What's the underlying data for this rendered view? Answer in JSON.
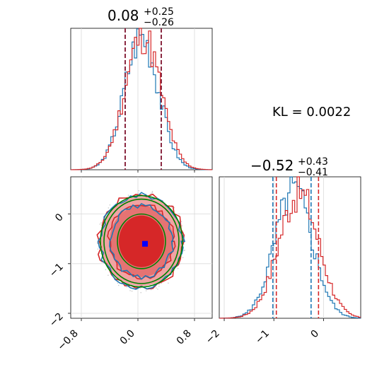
{
  "chart_data": {
    "type": "corner",
    "annotation": "KL = 0.0022",
    "colors": {
      "blue": "#1f77b4",
      "red": "#d62728",
      "green": "#008000",
      "dark_red": "#8b2942",
      "grid": "#d9d9d9",
      "scatter": "#cccccc"
    },
    "panels": [
      {
        "id": "hist-x",
        "type": "step-histogram",
        "title_main": "0.08",
        "title_sup": "+0.25",
        "title_sub": "−0.26",
        "xlim": [
          -0.95,
          1.05
        ],
        "ylim": [
          0,
          1.05
        ],
        "xticks": [
          -0.8,
          0.0,
          0.8
        ],
        "quantile_lines": [
          -0.18,
          0.33
        ],
        "series": [
          {
            "name": "blue",
            "center": 0.05,
            "sigma": 0.24,
            "jitter_seed": 3
          },
          {
            "name": "red",
            "center": 0.07,
            "sigma": 0.25,
            "jitter_seed": 11
          }
        ]
      },
      {
        "id": "hist-y",
        "type": "step-histogram",
        "title_main": "−0.52",
        "title_sup": "+0.43",
        "title_sub": "−0.41",
        "xlim": [
          -2.1,
          0.75
        ],
        "ylim": [
          0,
          1.1
        ],
        "xticks": [
          -2,
          -1,
          0
        ],
        "tick_labels": [
          "−2",
          "−1",
          "0"
        ],
        "blue_quantiles": [
          -1.02,
          -0.25
        ],
        "red_quantiles": [
          -0.95,
          -0.1
        ],
        "series": [
          {
            "name": "blue",
            "center": -0.6,
            "sigma": 0.38,
            "jitter_seed": 5
          },
          {
            "name": "red",
            "center": -0.5,
            "sigma": 0.4,
            "jitter_seed": 17
          }
        ]
      },
      {
        "id": "joint",
        "type": "2d-contour",
        "xlim": [
          -0.95,
          1.05
        ],
        "ylim": [
          -2.1,
          0.75
        ],
        "xticks": [
          -0.8,
          0.0,
          0.8
        ],
        "xtick_labels": [
          "−0.8",
          "0.0",
          "0.8"
        ],
        "yticks": [
          0,
          -1,
          -2
        ],
        "ytick_labels": [
          "0",
          "−1",
          "−2"
        ],
        "center": [
          0.05,
          -0.55
        ],
        "marker": [
          0.1,
          -0.6
        ],
        "green_ellipses": [
          {
            "rx": 0.34,
            "ry": 0.55
          },
          {
            "rx": 0.53,
            "ry": 0.85
          },
          {
            "rx": 0.58,
            "ry": 0.92
          }
        ]
      }
    ]
  }
}
